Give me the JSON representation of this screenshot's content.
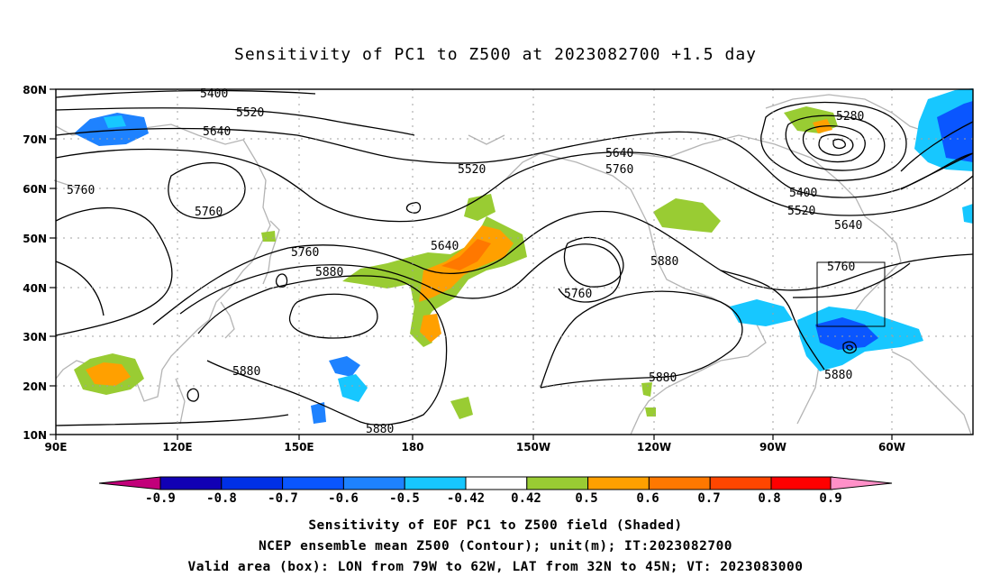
{
  "title": "Sensitivity of PC1 to Z500 at 2023082700 +1.5 day",
  "lat_labels": [
    "80N",
    "70N",
    "60N",
    "50N",
    "40N",
    "30N",
    "20N",
    "10N"
  ],
  "lon_labels": [
    "90E",
    "120E",
    "150E",
    "180",
    "150W",
    "120W",
    "90W",
    "60W"
  ],
  "contour_labels": [
    "5400",
    "5520",
    "5640",
    "5520",
    "5760",
    "5760",
    "5640",
    "5760",
    "5640",
    "5760",
    "5880",
    "5880",
    "5760",
    "5880",
    "5880",
    "5880",
    "5880",
    "5280",
    "5400",
    "5520",
    "5640",
    "5760",
    "5880"
  ],
  "colorbar": {
    "colors": [
      "#c2007a",
      "#1100b4",
      "#0030e6",
      "#0a56ff",
      "#1e82ff",
      "#17c7ff",
      "#ffffff",
      "#99cc33",
      "#ffa000",
      "#ff7800",
      "#ff4600",
      "#ff0000",
      "#ff90c8"
    ],
    "labels": [
      "-0.9",
      "-0.8",
      "-0.7",
      "-0.6",
      "-0.5",
      "-0.42",
      "0.42",
      "0.5",
      "0.6",
      "0.7",
      "0.8",
      "0.9"
    ]
  },
  "notes": {
    "line1": "Sensitivity of EOF PC1 to Z500 field (Shaded)",
    "line2": "NCEP ensemble mean Z500 (Contour); unit(m); IT:2023082700",
    "line3": "Valid area (box): LON from 79W to 62W, LAT from 32N to 45N; VT: 2023083000"
  }
}
